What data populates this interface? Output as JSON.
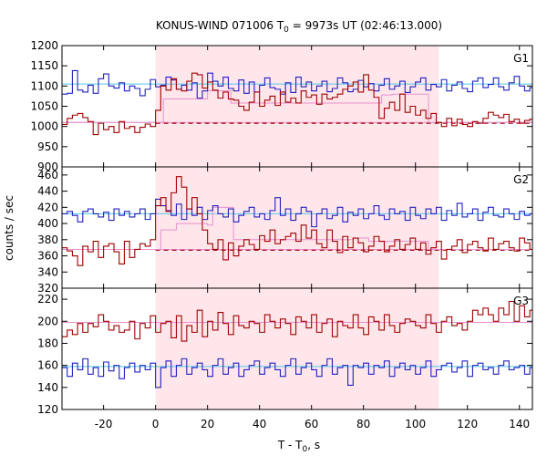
{
  "title": {
    "prefix": "KONUS-WIND 071006 T",
    "sub": "0",
    "suffix": " = 9973s UT (02:46:13.000)"
  },
  "xlabel": {
    "prefix": "T - T",
    "sub": "0",
    "suffix": ", s"
  },
  "ylabel": "counts / sec",
  "colors": {
    "blue_series": "#2020c0",
    "red_series": "#a00000",
    "blue_background": "#55c8e8",
    "red_background": "#e890d0",
    "interval_shade": "#ffe6ea"
  },
  "chart_data": {
    "type": "line",
    "step": true,
    "xlim": [
      -36,
      145
    ],
    "xticks": [
      -20,
      0,
      20,
      40,
      60,
      80,
      100,
      120,
      140
    ],
    "shaded_interval": [
      0,
      109
    ],
    "panels": [
      {
        "label": "G1",
        "ylim": [
          900,
          1200
        ],
        "yticks": [
          900,
          950,
          1000,
          1050,
          1100,
          1150,
          1200
        ],
        "dashed_level": 1008,
        "dashed_range": [
          0,
          145
        ],
        "background_levels": [
          {
            "series": "blue",
            "value": 1105
          },
          {
            "series": "red",
            "value": 1010
          }
        ],
        "series": [
          {
            "color": "blue",
            "x0": -36,
            "dx": 2,
            "values": [
              1080,
              1082,
              1138,
              1090,
              1085,
              1102,
              1082,
              1118,
              1130,
              1100,
              1095,
              1108,
              1088,
              1100,
              1094,
              1076,
              1092,
              1116,
              1098,
              1102,
              1122,
              1115,
              1092,
              1102,
              1090,
              1108,
              1070,
              1088,
              1132,
              1112,
              1100,
              1122,
              1094,
              1088,
              1115,
              1082,
              1110,
              1085,
              1102,
              1120,
              1096,
              1092,
              1080,
              1108,
              1084,
              1122,
              1098,
              1110,
              1088,
              1100,
              1112,
              1086,
              1094,
              1120,
              1108,
              1086,
              1092,
              1114,
              1098,
              1106,
              1088,
              1102,
              1118,
              1092,
              1100,
              1112,
              1084,
              1098,
              1110,
              1120,
              1090,
              1104,
              1098,
              1116,
              1088,
              1102,
              1110,
              1094,
              1086,
              1112,
              1120,
              1096,
              1104,
              1120,
              1098,
              1090,
              1108,
              1124,
              1100,
              1088,
              1096
            ]
          },
          {
            "color": "red",
            "x0": -36,
            "dx": 2,
            "values": [
              1005,
              1020,
              1028,
              1032,
              1022,
              1012,
              980,
              1008,
              992,
              1000,
              985,
              1012,
              995,
              1000,
              985,
              998,
              1006,
              1000,
              1040,
              1100,
              1090,
              1118,
              1092,
              1088,
              1112,
              1132,
              1128,
              1095,
              1110,
              1090,
              1070,
              1085,
              1068,
              1065,
              1050,
              1040,
              1060,
              1085,
              1050,
              1065,
              1075,
              1052,
              1085,
              1060,
              1070,
              1058,
              1088,
              1072,
              1078,
              1055,
              1080,
              1068,
              1072,
              1080,
              1092,
              1100,
              1110,
              1085,
              1128,
              1090,
              1072,
              1020,
              1045,
              1060,
              1040,
              1080,
              1035,
              1050,
              1028,
              1040,
              1020,
              1032,
              1010,
              1000,
              1020,
              1002,
              1018,
              1005,
              1000,
              1012,
              1008,
              1020,
              1035,
              1028,
              1022,
              1030,
              1012,
              1018,
              1008,
              1015,
              1018
            ]
          }
        ],
        "fit_level": {
          "color": "red",
          "segments": [
            [
              -36,
              1010
            ],
            [
              3,
              1068
            ],
            [
              20,
              1088
            ],
            [
              29,
              1058
            ],
            [
              87,
              1078
            ],
            [
              91,
              1080
            ],
            [
              105,
              1010
            ],
            [
              145,
              1010
            ]
          ]
        }
      },
      {
        "label": "G2",
        "ylim": [
          320,
          470
        ],
        "yticks": [
          320,
          340,
          360,
          380,
          400,
          420,
          440,
          460
        ],
        "dashed_level": 367,
        "dashed_range": [
          0,
          145
        ],
        "background_levels": [
          {
            "series": "blue",
            "value": 412
          },
          {
            "series": "red",
            "value": 368
          }
        ],
        "series": [
          {
            "color": "blue",
            "x0": -36,
            "dx": 2,
            "values": [
              412,
              415,
              410,
              402,
              415,
              418,
              412,
              408,
              414,
              404,
              418,
              410,
              415,
              408,
              412,
              418,
              405,
              412,
              430,
              422,
              416,
              410,
              424,
              405,
              418,
              410,
              420,
              405,
              416,
              422,
              412,
              408,
              418,
              402,
              410,
              415,
              420,
              408,
              412,
              405,
              416,
              432,
              410,
              418,
              404,
              412,
              420,
              415,
              396,
              412,
              418,
              406,
              410,
              420,
              402,
              414,
              410,
              418,
              406,
              412,
              422,
              410,
              405,
              418,
              412,
              415,
              404,
              420,
              410,
              406,
              418,
              412,
              420,
              404,
              416,
              410,
              425,
              408,
              412,
              418,
              404,
              414,
              420,
              410,
              408,
              418,
              412,
              405,
              415,
              410,
              412
            ]
          },
          {
            "color": "red",
            "x0": -36,
            "dx": 2,
            "values": [
              370,
              366,
              360,
              348,
              372,
              365,
              378,
              358,
              372,
              375,
              365,
              350,
              378,
              358,
              368,
              375,
              372,
              380,
              422,
              432,
              415,
              438,
              458,
              445,
              418,
              432,
              412,
              392,
              375,
              368,
              380,
              355,
              376,
              360,
              372,
              380,
              374,
              368,
              385,
              378,
              392,
              375,
              380,
              384,
              388,
              378,
              398,
              382,
              392,
              375,
              370,
              392,
              378,
              364,
              384,
              370,
              382,
              376,
              365,
              372,
              384,
              378,
              365,
              372,
              380,
              368,
              374,
              382,
              368,
              376,
              362,
              370,
              378,
              356,
              368,
              372,
              380,
              364,
              374,
              378,
              370,
              366,
              382,
              368,
              375,
              378,
              370,
              366,
              382,
              376,
              368
            ]
          }
        ],
        "fit_level": {
          "color": "red",
          "segments": [
            [
              -36,
              368
            ],
            [
              0,
              368
            ],
            [
              2,
              392
            ],
            [
              8,
              400
            ],
            [
              20,
              398
            ],
            [
              22,
              420
            ],
            [
              27,
              420
            ],
            [
              30,
              380
            ],
            [
              76,
              382
            ],
            [
              82,
              378
            ],
            [
              105,
              368
            ],
            [
              145,
              368
            ]
          ]
        }
      },
      {
        "label": "G3",
        "ylim": [
          120,
          230
        ],
        "yticks": [
          120,
          140,
          160,
          180,
          200,
          220
        ],
        "dashed_level": null,
        "background_levels": [
          {
            "series": "blue",
            "value": 159
          },
          {
            "series": "red",
            "value": 199
          }
        ],
        "series": [
          {
            "color": "blue",
            "x0": -36,
            "dx": 2,
            "values": [
              158,
              150,
              162,
              156,
              166,
              152,
              158,
              150,
              163,
              155,
              160,
              148,
              158,
              162,
              154,
              160,
              156,
              162,
              140,
              158,
              164,
              150,
              160,
              166,
              152,
              158,
              162,
              156,
              150,
              160,
              166,
              152,
              158,
              162,
              150,
              156,
              160,
              164,
              152,
              158,
              162,
              156,
              150,
              160,
              166,
              152,
              158,
              162,
              156,
              150,
              160,
              166,
              152,
              158,
              160,
              142,
              160,
              158,
              162,
              152,
              160,
              158,
              164,
              150,
              158,
              162,
              156,
              160,
              152,
              158,
              164,
              150,
              156,
              160,
              162,
              154,
              158,
              164,
              150,
              160,
              162,
              156,
              158,
              152,
              160,
              164,
              156,
              158,
              160,
              152,
              158
            ]
          },
          {
            "color": "red",
            "x0": -36,
            "dx": 2,
            "values": [
              186,
              192,
              188,
              198,
              190,
              198,
              195,
              206,
              200,
              192,
              196,
              190,
              192,
              200,
              184,
              198,
              194,
              205,
              190,
              198,
              200,
              185,
              205,
              182,
              196,
              190,
              210,
              186,
              200,
              192,
              208,
              198,
              188,
              205,
              196,
              194,
              200,
              198,
              190,
              206,
              200,
              194,
              202,
              198,
              188,
              204,
              200,
              194,
              206,
              190,
              198,
              202,
              186,
              200,
              196,
              194,
              206,
              194,
              188,
              204,
              200,
              192,
              206,
              196,
              190,
              198,
              202,
              200,
              196,
              194,
              206,
              198,
              190,
              200,
              204,
              196,
              198,
              192,
              200,
              210,
              206,
              212,
              206,
              200,
              212,
              206,
              218,
              200,
              214,
              204,
              210
            ]
          }
        ]
      }
    ]
  }
}
